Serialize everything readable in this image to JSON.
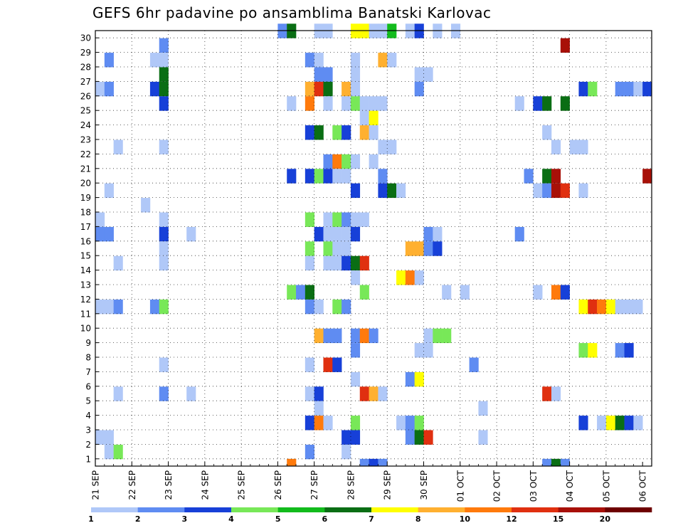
{
  "title": "GEFS 6hr padavine po ansamblima Banatski Karlovac",
  "chart_data": {
    "type": "heatmap",
    "title": "GEFS 6hr padavine po ansamblima Banatski Karlovac",
    "y_categories": [
      "1",
      "2",
      "3",
      "4",
      "5",
      "6",
      "7",
      "8",
      "9",
      "10",
      "11",
      "12",
      "13",
      "14",
      "15",
      "16",
      "17",
      "18",
      "19",
      "20",
      "21",
      "22",
      "23",
      "24",
      "25",
      "26",
      "27",
      "28",
      "29",
      "30"
    ],
    "x_tick_labels": [
      "21 SEP",
      "22 SEP",
      "23 SEP",
      "24 SEP",
      "25 SEP",
      "26 SEP",
      "27 SEP",
      "28 SEP",
      "29 SEP",
      "30 SEP",
      "01 OCT",
      "02 OCT",
      "03 OCT",
      "04 OCT",
      "05 OCT",
      "06 OCT"
    ],
    "x_unit": "6-hour step from 21 SEP 00z",
    "grid": true,
    "colorbar": {
      "levels": [
        1,
        2,
        3,
        4,
        5,
        6,
        7,
        8,
        10,
        12,
        15,
        20
      ],
      "labels": [
        "1",
        "2",
        "3",
        "4",
        "5",
        "6",
        "7",
        "8",
        "10",
        "12",
        "15",
        "20"
      ],
      "colors": [
        "#b0c8f8",
        "#5f8cf2",
        "#1740d8",
        "#78e858",
        "#12bb1c",
        "#0a6e14",
        "#ffff00",
        "#ffb030",
        "#ff7a0c",
        "#e03010",
        "#a81008",
        "#6e0000"
      ]
    },
    "cells": [
      {
        "m": 30,
        "t": 20,
        "c": 2
      },
      {
        "m": 30,
        "t": 21,
        "c": 6
      },
      {
        "m": 30,
        "t": 24,
        "c": 1
      },
      {
        "m": 30,
        "t": 25,
        "c": 1
      },
      {
        "m": 30,
        "t": 28,
        "c": 7
      },
      {
        "m": 30,
        "t": 29,
        "c": 7
      },
      {
        "m": 30,
        "t": 30,
        "c": 1
      },
      {
        "m": 30,
        "t": 31,
        "c": 1
      },
      {
        "m": 30,
        "t": 32,
        "c": 5
      },
      {
        "m": 30,
        "t": 34,
        "c": 1
      },
      {
        "m": 30,
        "t": 35,
        "c": 3
      },
      {
        "m": 30,
        "t": 37,
        "c": 1
      },
      {
        "m": 30,
        "t": 39,
        "c": 1
      },
      {
        "m": 29,
        "t": 7,
        "c": 2
      },
      {
        "m": 29,
        "t": 51,
        "c": 11
      },
      {
        "m": 28,
        "t": 1,
        "c": 2
      },
      {
        "m": 28,
        "t": 6,
        "c": 1
      },
      {
        "m": 28,
        "t": 7,
        "c": 1
      },
      {
        "m": 28,
        "t": 23,
        "c": 2
      },
      {
        "m": 28,
        "t": 24,
        "c": 1
      },
      {
        "m": 28,
        "t": 28,
        "c": 1
      },
      {
        "m": 28,
        "t": 31,
        "c": 8
      },
      {
        "m": 28,
        "t": 32,
        "c": 1
      },
      {
        "m": 27,
        "t": 7,
        "c": 6
      },
      {
        "m": 27,
        "t": 24,
        "c": 2
      },
      {
        "m": 27,
        "t": 25,
        "c": 2
      },
      {
        "m": 27,
        "t": 28,
        "c": 1
      },
      {
        "m": 27,
        "t": 35,
        "c": 1
      },
      {
        "m": 27,
        "t": 36,
        "c": 1
      },
      {
        "m": 26,
        "t": 0,
        "c": 1
      },
      {
        "m": 26,
        "t": 1,
        "c": 2
      },
      {
        "m": 26,
        "t": 6,
        "c": 3
      },
      {
        "m": 26,
        "t": 7,
        "c": 6
      },
      {
        "m": 26,
        "t": 23,
        "c": 8
      },
      {
        "m": 26,
        "t": 24,
        "c": 10
      },
      {
        "m": 26,
        "t": 25,
        "c": 6
      },
      {
        "m": 26,
        "t": 27,
        "c": 8
      },
      {
        "m": 26,
        "t": 28,
        "c": 1
      },
      {
        "m": 26,
        "t": 35,
        "c": 2
      },
      {
        "m": 26,
        "t": 53,
        "c": 3
      },
      {
        "m": 26,
        "t": 54,
        "c": 4
      },
      {
        "m": 26,
        "t": 57,
        "c": 2
      },
      {
        "m": 26,
        "t": 58,
        "c": 2
      },
      {
        "m": 26,
        "t": 59,
        "c": 1
      },
      {
        "m": 26,
        "t": 60,
        "c": 3
      },
      {
        "m": 25,
        "t": 7,
        "c": 3
      },
      {
        "m": 25,
        "t": 21,
        "c": 1
      },
      {
        "m": 25,
        "t": 23,
        "c": 9
      },
      {
        "m": 25,
        "t": 25,
        "c": 1
      },
      {
        "m": 25,
        "t": 27,
        "c": 1
      },
      {
        "m": 25,
        "t": 28,
        "c": 4
      },
      {
        "m": 25,
        "t": 29,
        "c": 1
      },
      {
        "m": 25,
        "t": 30,
        "c": 1
      },
      {
        "m": 25,
        "t": 31,
        "c": 1
      },
      {
        "m": 25,
        "t": 46,
        "c": 1
      },
      {
        "m": 25,
        "t": 48,
        "c": 3
      },
      {
        "m": 25,
        "t": 49,
        "c": 6
      },
      {
        "m": 25,
        "t": 51,
        "c": 6
      },
      {
        "m": 24,
        "t": 29,
        "c": 1
      },
      {
        "m": 24,
        "t": 30,
        "c": 7
      },
      {
        "m": 23,
        "t": 23,
        "c": 3
      },
      {
        "m": 23,
        "t": 24,
        "c": 6
      },
      {
        "m": 23,
        "t": 26,
        "c": 4
      },
      {
        "m": 23,
        "t": 27,
        "c": 3
      },
      {
        "m": 23,
        "t": 29,
        "c": 8
      },
      {
        "m": 23,
        "t": 30,
        "c": 1
      },
      {
        "m": 23,
        "t": 49,
        "c": 1
      },
      {
        "m": 22,
        "t": 2,
        "c": 1
      },
      {
        "m": 22,
        "t": 7,
        "c": 1
      },
      {
        "m": 22,
        "t": 31,
        "c": 1
      },
      {
        "m": 22,
        "t": 32,
        "c": 1
      },
      {
        "m": 22,
        "t": 50,
        "c": 1
      },
      {
        "m": 22,
        "t": 52,
        "c": 1
      },
      {
        "m": 22,
        "t": 53,
        "c": 1
      },
      {
        "m": 21,
        "t": 25,
        "c": 2
      },
      {
        "m": 21,
        "t": 26,
        "c": 9
      },
      {
        "m": 21,
        "t": 27,
        "c": 4
      },
      {
        "m": 21,
        "t": 28,
        "c": 1
      },
      {
        "m": 21,
        "t": 30,
        "c": 1
      },
      {
        "m": 20,
        "t": 21,
        "c": 3
      },
      {
        "m": 20,
        "t": 23,
        "c": 3
      },
      {
        "m": 20,
        "t": 24,
        "c": 4
      },
      {
        "m": 20,
        "t": 25,
        "c": 3
      },
      {
        "m": 20,
        "t": 26,
        "c": 1
      },
      {
        "m": 20,
        "t": 27,
        "c": 1
      },
      {
        "m": 20,
        "t": 31,
        "c": 2
      },
      {
        "m": 20,
        "t": 47,
        "c": 2
      },
      {
        "m": 20,
        "t": 49,
        "c": 6
      },
      {
        "m": 20,
        "t": 50,
        "c": 11
      },
      {
        "m": 20,
        "t": 60,
        "c": 11
      },
      {
        "m": 19,
        "t": 1,
        "c": 1
      },
      {
        "m": 19,
        "t": 28,
        "c": 3
      },
      {
        "m": 19,
        "t": 31,
        "c": 3
      },
      {
        "m": 19,
        "t": 32,
        "c": 6
      },
      {
        "m": 19,
        "t": 33,
        "c": 1
      },
      {
        "m": 19,
        "t": 48,
        "c": 1
      },
      {
        "m": 19,
        "t": 49,
        "c": 2
      },
      {
        "m": 19,
        "t": 50,
        "c": 11
      },
      {
        "m": 19,
        "t": 51,
        "c": 10
      },
      {
        "m": 19,
        "t": 53,
        "c": 1
      },
      {
        "m": 18,
        "t": 5,
        "c": 1
      },
      {
        "m": 17,
        "t": 0,
        "c": 1
      },
      {
        "m": 17,
        "t": 7,
        "c": 1
      },
      {
        "m": 17,
        "t": 23,
        "c": 4
      },
      {
        "m": 17,
        "t": 25,
        "c": 1
      },
      {
        "m": 17,
        "t": 26,
        "c": 4
      },
      {
        "m": 17,
        "t": 27,
        "c": 2
      },
      {
        "m": 17,
        "t": 28,
        "c": 1
      },
      {
        "m": 17,
        "t": 29,
        "c": 1
      },
      {
        "m": 16,
        "t": 0,
        "c": 2
      },
      {
        "m": 16,
        "t": 1,
        "c": 2
      },
      {
        "m": 16,
        "t": 7,
        "c": 3
      },
      {
        "m": 16,
        "t": 10,
        "c": 1
      },
      {
        "m": 16,
        "t": 24,
        "c": 3
      },
      {
        "m": 16,
        "t": 25,
        "c": 1
      },
      {
        "m": 16,
        "t": 26,
        "c": 1
      },
      {
        "m": 16,
        "t": 27,
        "c": 1
      },
      {
        "m": 16,
        "t": 28,
        "c": 3
      },
      {
        "m": 16,
        "t": 36,
        "c": 2
      },
      {
        "m": 16,
        "t": 37,
        "c": 1
      },
      {
        "m": 16,
        "t": 46,
        "c": 2
      },
      {
        "m": 15,
        "t": 7,
        "c": 1
      },
      {
        "m": 15,
        "t": 23,
        "c": 4
      },
      {
        "m": 15,
        "t": 25,
        "c": 4
      },
      {
        "m": 15,
        "t": 26,
        "c": 1
      },
      {
        "m": 15,
        "t": 27,
        "c": 1
      },
      {
        "m": 15,
        "t": 34,
        "c": 8
      },
      {
        "m": 15,
        "t": 35,
        "c": 8
      },
      {
        "m": 15,
        "t": 36,
        "c": 2
      },
      {
        "m": 15,
        "t": 37,
        "c": 3
      },
      {
        "m": 14,
        "t": 2,
        "c": 1
      },
      {
        "m": 14,
        "t": 7,
        "c": 1
      },
      {
        "m": 14,
        "t": 23,
        "c": 1
      },
      {
        "m": 14,
        "t": 25,
        "c": 1
      },
      {
        "m": 14,
        "t": 26,
        "c": 1
      },
      {
        "m": 14,
        "t": 27,
        "c": 3
      },
      {
        "m": 14,
        "t": 28,
        "c": 6
      },
      {
        "m": 14,
        "t": 29,
        "c": 10
      },
      {
        "m": 13,
        "t": 28,
        "c": 1
      },
      {
        "m": 13,
        "t": 33,
        "c": 7
      },
      {
        "m": 13,
        "t": 34,
        "c": 9
      },
      {
        "m": 13,
        "t": 35,
        "c": 1
      },
      {
        "m": 12,
        "t": 21,
        "c": 4
      },
      {
        "m": 12,
        "t": 22,
        "c": 2
      },
      {
        "m": 12,
        "t": 23,
        "c": 6
      },
      {
        "m": 12,
        "t": 29,
        "c": 4
      },
      {
        "m": 12,
        "t": 38,
        "c": 1
      },
      {
        "m": 12,
        "t": 40,
        "c": 1
      },
      {
        "m": 12,
        "t": 48,
        "c": 1
      },
      {
        "m": 12,
        "t": 50,
        "c": 9
      },
      {
        "m": 12,
        "t": 51,
        "c": 3
      },
      {
        "m": 11,
        "t": 0,
        "c": 1
      },
      {
        "m": 11,
        "t": 1,
        "c": 1
      },
      {
        "m": 11,
        "t": 2,
        "c": 2
      },
      {
        "m": 11,
        "t": 6,
        "c": 2
      },
      {
        "m": 11,
        "t": 7,
        "c": 4
      },
      {
        "m": 11,
        "t": 23,
        "c": 2
      },
      {
        "m": 11,
        "t": 24,
        "c": 1
      },
      {
        "m": 11,
        "t": 26,
        "c": 4
      },
      {
        "m": 11,
        "t": 27,
        "c": 2
      },
      {
        "m": 11,
        "t": 53,
        "c": 7
      },
      {
        "m": 11,
        "t": 54,
        "c": 10
      },
      {
        "m": 11,
        "t": 55,
        "c": 9
      },
      {
        "m": 11,
        "t": 56,
        "c": 7
      },
      {
        "m": 11,
        "t": 57,
        "c": 1
      },
      {
        "m": 11,
        "t": 58,
        "c": 1
      },
      {
        "m": 11,
        "t": 59,
        "c": 1
      },
      {
        "m": 9,
        "t": 24,
        "c": 8
      },
      {
        "m": 9,
        "t": 25,
        "c": 2
      },
      {
        "m": 9,
        "t": 26,
        "c": 2
      },
      {
        "m": 9,
        "t": 28,
        "c": 2
      },
      {
        "m": 9,
        "t": 29,
        "c": 9
      },
      {
        "m": 9,
        "t": 30,
        "c": 2
      },
      {
        "m": 9,
        "t": 36,
        "c": 1
      },
      {
        "m": 9,
        "t": 37,
        "c": 4
      },
      {
        "m": 9,
        "t": 38,
        "c": 4
      },
      {
        "m": 8,
        "t": 28,
        "c": 2
      },
      {
        "m": 8,
        "t": 35,
        "c": 1
      },
      {
        "m": 8,
        "t": 36,
        "c": 1
      },
      {
        "m": 8,
        "t": 53,
        "c": 4
      },
      {
        "m": 8,
        "t": 54,
        "c": 7
      },
      {
        "m": 8,
        "t": 57,
        "c": 2
      },
      {
        "m": 8,
        "t": 58,
        "c": 3
      },
      {
        "m": 7,
        "t": 7,
        "c": 1
      },
      {
        "m": 7,
        "t": 23,
        "c": 1
      },
      {
        "m": 7,
        "t": 25,
        "c": 10
      },
      {
        "m": 7,
        "t": 26,
        "c": 3
      },
      {
        "m": 7,
        "t": 41,
        "c": 2
      },
      {
        "m": 6,
        "t": 28,
        "c": 1
      },
      {
        "m": 6,
        "t": 34,
        "c": 2
      },
      {
        "m": 6,
        "t": 35,
        "c": 7
      },
      {
        "m": 5,
        "t": 2,
        "c": 1
      },
      {
        "m": 5,
        "t": 7,
        "c": 2
      },
      {
        "m": 5,
        "t": 10,
        "c": 1
      },
      {
        "m": 5,
        "t": 23,
        "c": 1
      },
      {
        "m": 5,
        "t": 24,
        "c": 3
      },
      {
        "m": 5,
        "t": 29,
        "c": 10
      },
      {
        "m": 5,
        "t": 30,
        "c": 8
      },
      {
        "m": 5,
        "t": 31,
        "c": 1
      },
      {
        "m": 5,
        "t": 49,
        "c": 10
      },
      {
        "m": 5,
        "t": 50,
        "c": 1
      },
      {
        "m": 4,
        "t": 24,
        "c": 1
      },
      {
        "m": 4,
        "t": 42,
        "c": 1
      },
      {
        "m": 3,
        "t": 23,
        "c": 3
      },
      {
        "m": 3,
        "t": 24,
        "c": 9
      },
      {
        "m": 3,
        "t": 25,
        "c": 1
      },
      {
        "m": 3,
        "t": 28,
        "c": 4
      },
      {
        "m": 3,
        "t": 33,
        "c": 1
      },
      {
        "m": 3,
        "t": 34,
        "c": 2
      },
      {
        "m": 3,
        "t": 35,
        "c": 4
      },
      {
        "m": 3,
        "t": 53,
        "c": 3
      },
      {
        "m": 3,
        "t": 55,
        "c": 1
      },
      {
        "m": 3,
        "t": 56,
        "c": 7
      },
      {
        "m": 3,
        "t": 57,
        "c": 6
      },
      {
        "m": 3,
        "t": 58,
        "c": 3
      },
      {
        "m": 3,
        "t": 59,
        "c": 1
      },
      {
        "m": 2,
        "t": 0,
        "c": 1
      },
      {
        "m": 2,
        "t": 1,
        "c": 1
      },
      {
        "m": 2,
        "t": 27,
        "c": 3
      },
      {
        "m": 2,
        "t": 28,
        "c": 3
      },
      {
        "m": 2,
        "t": 34,
        "c": 2
      },
      {
        "m": 2,
        "t": 35,
        "c": 6
      },
      {
        "m": 2,
        "t": 36,
        "c": 10
      },
      {
        "m": 2,
        "t": 42,
        "c": 1
      },
      {
        "m": 1,
        "t": 1,
        "c": 1
      },
      {
        "m": 1,
        "t": 2,
        "c": 4
      },
      {
        "m": 1,
        "t": 23,
        "c": 2
      },
      {
        "m": 1,
        "t": 27,
        "c": 1
      }
    ],
    "extra_row": [
      {
        "t": 21,
        "c": 9
      },
      {
        "t": 29,
        "c": 2
      },
      {
        "t": 30,
        "c": 3
      },
      {
        "t": 31,
        "c": 2
      },
      {
        "t": 49,
        "c": 2
      },
      {
        "t": 50,
        "c": 6
      },
      {
        "t": 51,
        "c": 2
      }
    ]
  }
}
